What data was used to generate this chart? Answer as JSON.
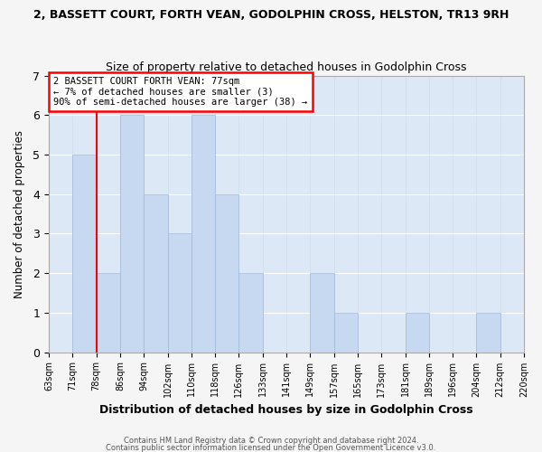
{
  "title_line1": "2, BASSETT COURT, FORTH VEAN, GODOLPHIN CROSS, HELSTON, TR13 9RH",
  "title_line2": "Size of property relative to detached houses in Godolphin Cross",
  "xlabel": "Distribution of detached houses by size in Godolphin Cross",
  "ylabel": "Number of detached properties",
  "bin_edges": [
    "63sqm",
    "71sqm",
    "78sqm",
    "86sqm",
    "94sqm",
    "102sqm",
    "110sqm",
    "118sqm",
    "126sqm",
    "133sqm",
    "141sqm",
    "149sqm",
    "157sqm",
    "165sqm",
    "173sqm",
    "181sqm",
    "189sqm",
    "196sqm",
    "204sqm",
    "212sqm",
    "220sqm"
  ],
  "bin_values": [
    0,
    5,
    2,
    6,
    4,
    3,
    6,
    4,
    2,
    0,
    0,
    2,
    1,
    0,
    0,
    1,
    0,
    0,
    1,
    0
  ],
  "bar_color": "#c6d9f0",
  "bar_edge_color": "#a0b8d8",
  "subject_tick_index": 2,
  "ylim": [
    0,
    7
  ],
  "yticks": [
    0,
    1,
    2,
    3,
    4,
    5,
    6,
    7
  ],
  "annotation_text_line1": "2 BASSETT COURT FORTH VEAN: 77sqm",
  "annotation_text_line2": "← 7% of detached houses are smaller (3)",
  "annotation_text_line3": "90% of semi-detached houses are larger (38) →",
  "footer_line1": "Contains HM Land Registry data © Crown copyright and database right 2024.",
  "footer_line2": "Contains public sector information licensed under the Open Government Licence v3.0.",
  "grid_color": "#d0dcea",
  "background_color": "#dce8f5",
  "fig_bg_color": "#f5f5f5"
}
